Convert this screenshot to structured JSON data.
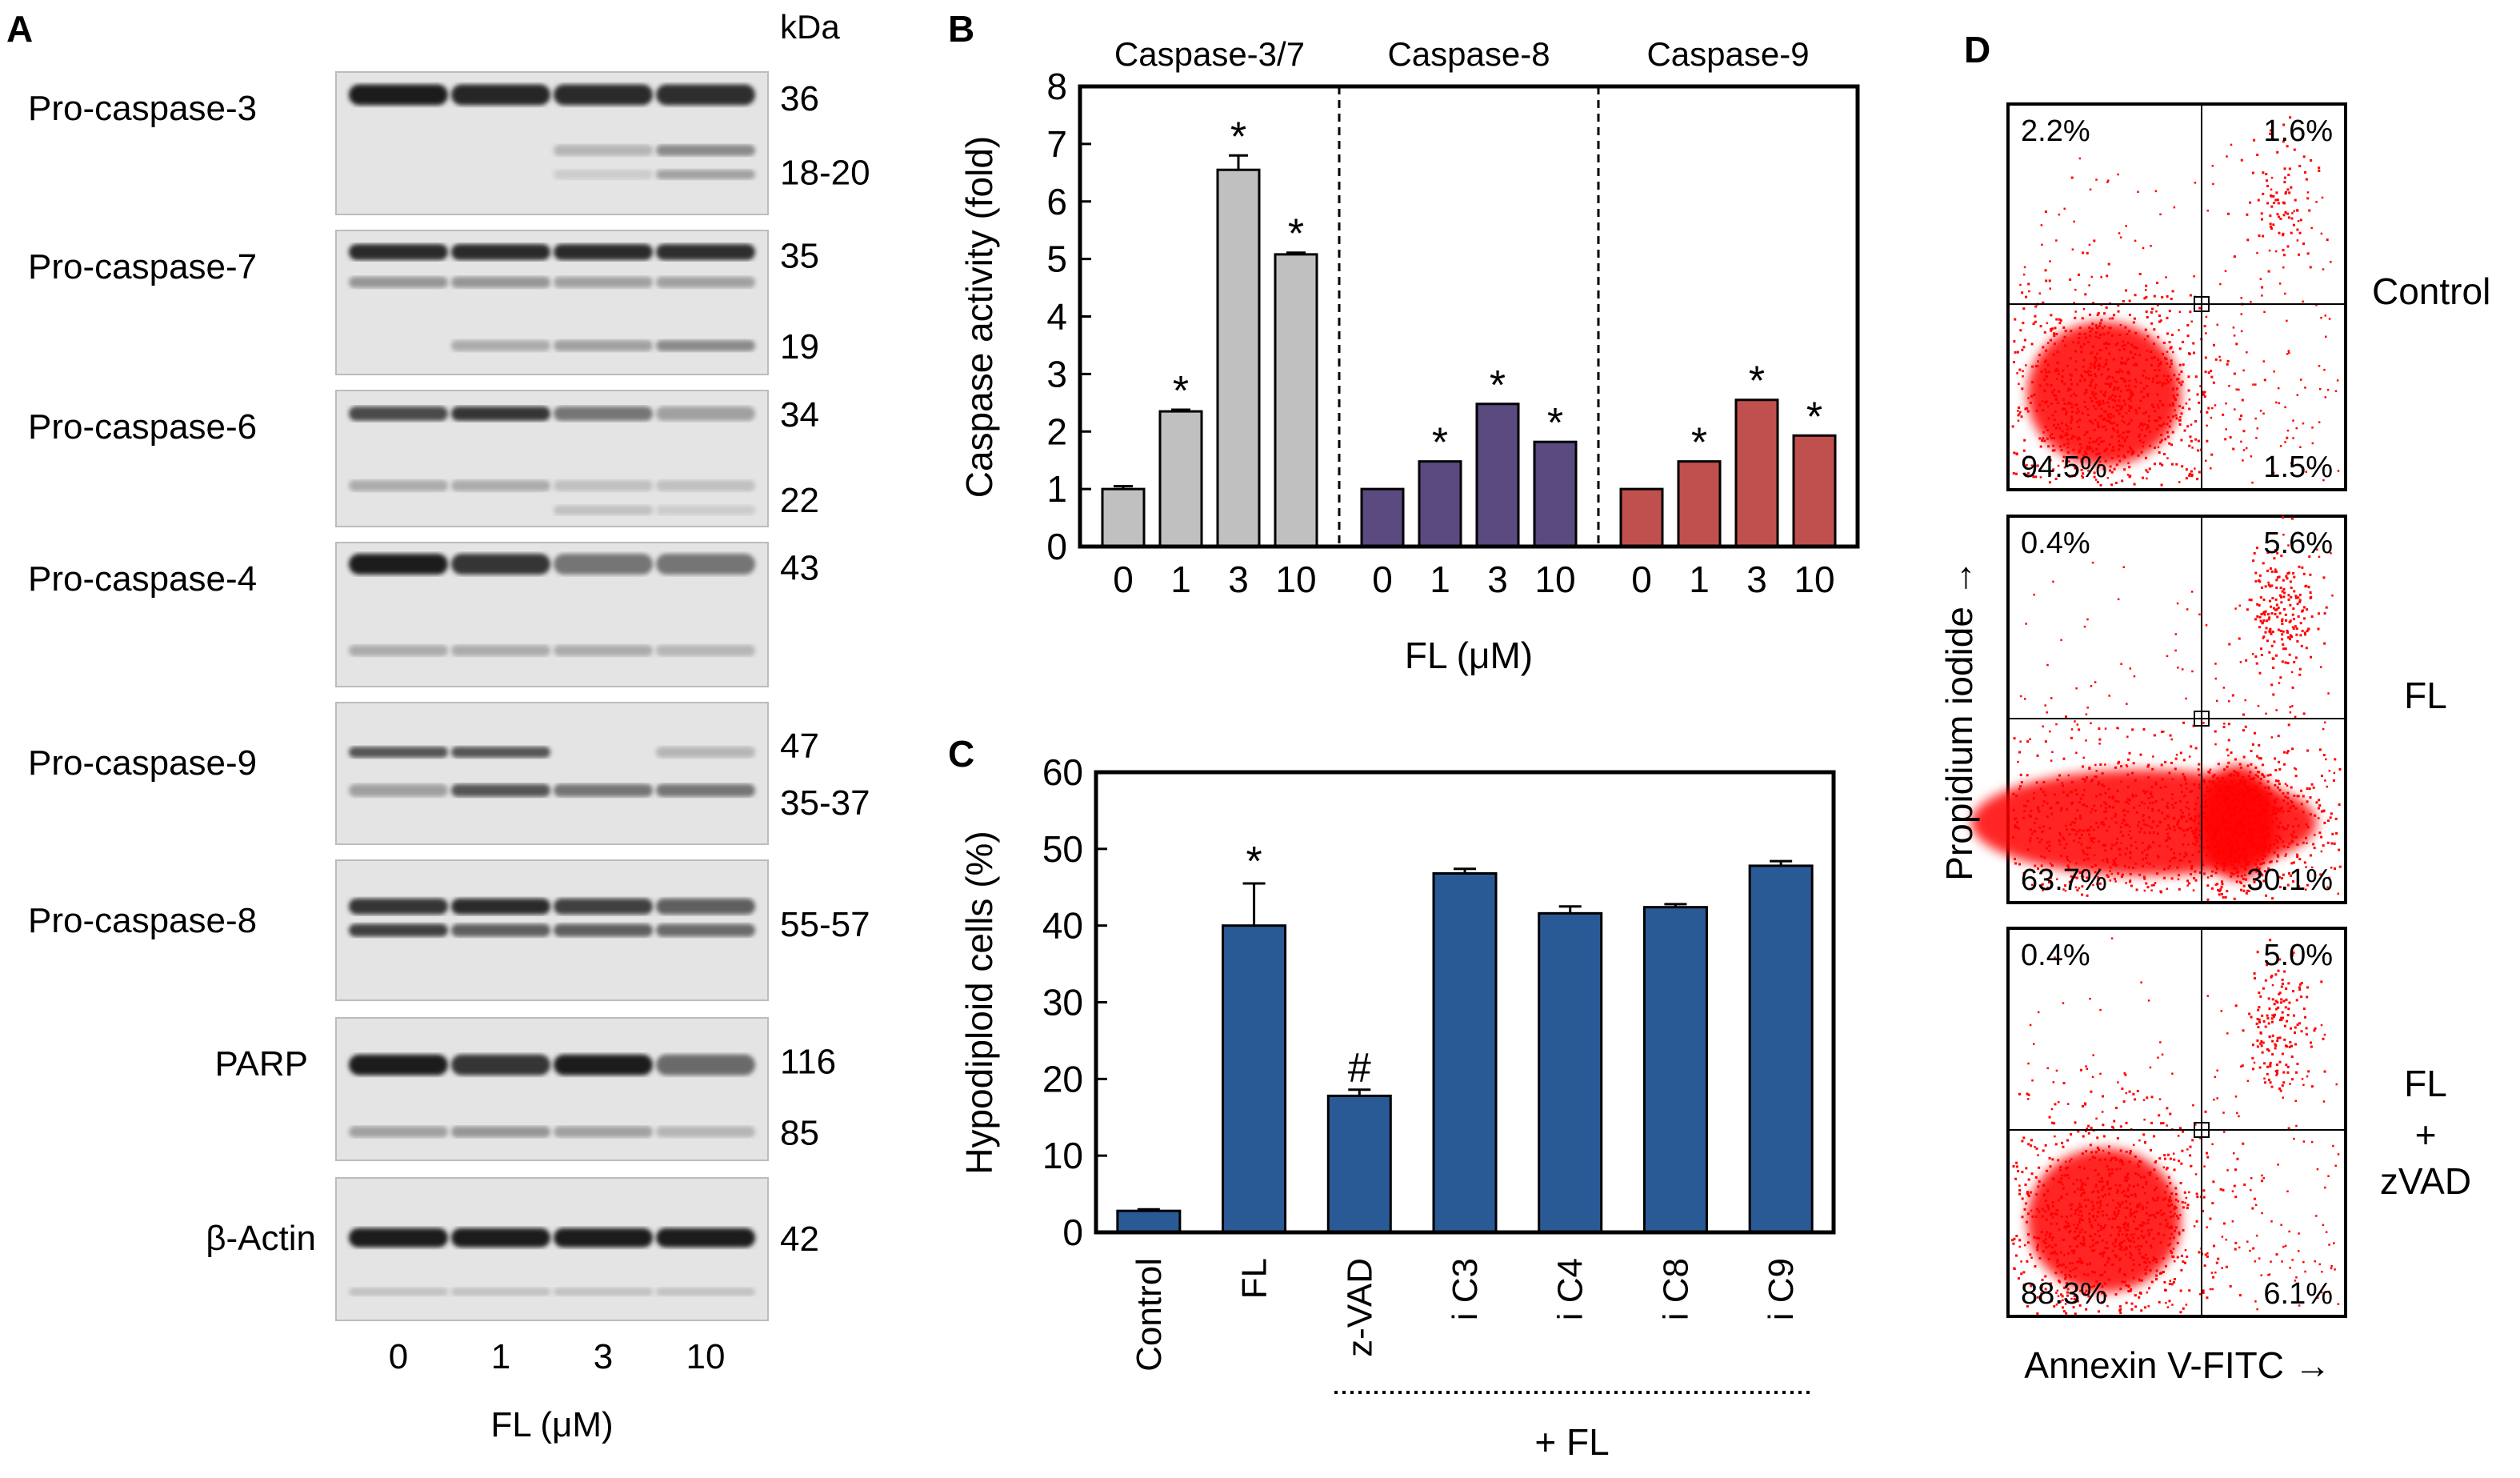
{
  "panels": {
    "A": {
      "letter": "A",
      "kda_label": "kDa",
      "x_label": "FL (μM)",
      "lane_labels": [
        "0",
        "1",
        "3",
        "10"
      ],
      "blots": [
        {
          "name": "Pro-caspase-3",
          "mw": [
            "36",
            "18-20"
          ]
        },
        {
          "name": "Pro-caspase-7",
          "mw": [
            "35",
            "19"
          ]
        },
        {
          "name": "Pro-caspase-6",
          "mw": [
            "34",
            "22"
          ]
        },
        {
          "name": "Pro-caspase-4",
          "mw": [
            "43"
          ]
        },
        {
          "name": "Pro-caspase-9",
          "mw": [
            "47",
            "35-37"
          ]
        },
        {
          "name": "Pro-caspase-8",
          "mw": [
            "55-57"
          ]
        },
        {
          "name": "PARP",
          "mw": [
            "116",
            "85"
          ]
        },
        {
          "name": "β-Actin",
          "mw": [
            "42"
          ]
        }
      ]
    },
    "B": {
      "letter": "B"
    },
    "C": {
      "letter": "C",
      "bracket_label": "+ FL"
    },
    "D": {
      "letter": "D",
      "x_label": "Annexin V-FITC →",
      "y_label": "Propidium iodide →",
      "plots": [
        {
          "condition": [
            "Control"
          ],
          "quadrants": {
            "ul": "2.2%",
            "ur": "1.6%",
            "ll": "94.5%",
            "lr": "1.5%"
          }
        },
        {
          "condition": [
            "FL"
          ],
          "quadrants": {
            "ul": "0.4%",
            "ur": "5.6%",
            "ll": "63.7%",
            "lr": "30.1%"
          }
        },
        {
          "condition": [
            "FL",
            "+",
            "zVAD"
          ],
          "quadrants": {
            "ul": "0.4%",
            "ur": "5.0%",
            "ll": "88.3%",
            "lr": "6.1%"
          }
        }
      ]
    }
  },
  "chart_data": [
    {
      "panel": "B",
      "type": "bar",
      "ylabel": "Caspase activity (fold)",
      "xlabel": "FL (μM)",
      "ylim": [
        0,
        8
      ],
      "yticks": [
        0,
        1,
        2,
        3,
        4,
        5,
        6,
        7,
        8
      ],
      "groups": [
        {
          "name": "Caspase-3/7",
          "color": "#c0c0c0",
          "categories": [
            "0",
            "1",
            "3",
            "10"
          ],
          "values": [
            1.0,
            2.35,
            6.55,
            5.08
          ],
          "errors": [
            0.05,
            0.03,
            0.25,
            0.03
          ],
          "significant": [
            false,
            true,
            true,
            true
          ],
          "mark": "*"
        },
        {
          "name": "Caspase-8",
          "color": "#5b4a80",
          "categories": [
            "0",
            "1",
            "3",
            "10"
          ],
          "values": [
            1.0,
            1.48,
            2.48,
            1.82
          ],
          "errors": [
            0,
            0,
            0,
            0
          ],
          "significant": [
            false,
            true,
            true,
            true
          ],
          "mark": "*"
        },
        {
          "name": "Caspase-9",
          "color": "#c0504d",
          "categories": [
            "0",
            "1",
            "3",
            "10"
          ],
          "values": [
            1.0,
            1.48,
            2.55,
            1.93
          ],
          "errors": [
            0,
            0,
            0,
            0
          ],
          "significant": [
            false,
            true,
            true,
            true
          ],
          "mark": "*"
        }
      ]
    },
    {
      "panel": "C",
      "type": "bar",
      "ylabel": "Hypodiploid cells (%)",
      "ylim": [
        0,
        60
      ],
      "yticks": [
        0,
        10,
        20,
        30,
        40,
        50,
        60
      ],
      "color": "#2a5a96",
      "categories": [
        "Control",
        "FL",
        "z-VAD",
        "i C3",
        "i C4",
        "i C8",
        "i C9"
      ],
      "values": [
        2.8,
        40.0,
        17.8,
        46.8,
        41.6,
        42.4,
        47.8
      ],
      "errors": [
        0.2,
        5.5,
        0.8,
        0.6,
        0.9,
        0.4,
        0.6
      ],
      "marks": [
        "",
        "*",
        "#",
        "",
        "",
        "",
        ""
      ]
    }
  ]
}
